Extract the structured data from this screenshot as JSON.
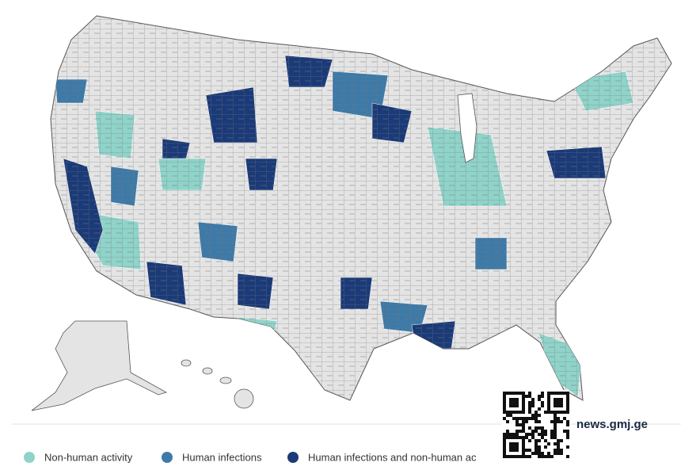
{
  "legend": {
    "items": [
      {
        "label": "Non-human activity",
        "color": "#8fd3c9"
      },
      {
        "label": "Human infections",
        "color": "#3e7aa8"
      },
      {
        "label": "Human infections and non-human ac",
        "color": "#1b3a78"
      }
    ]
  },
  "watermark": "news.gmj.ge"
}
